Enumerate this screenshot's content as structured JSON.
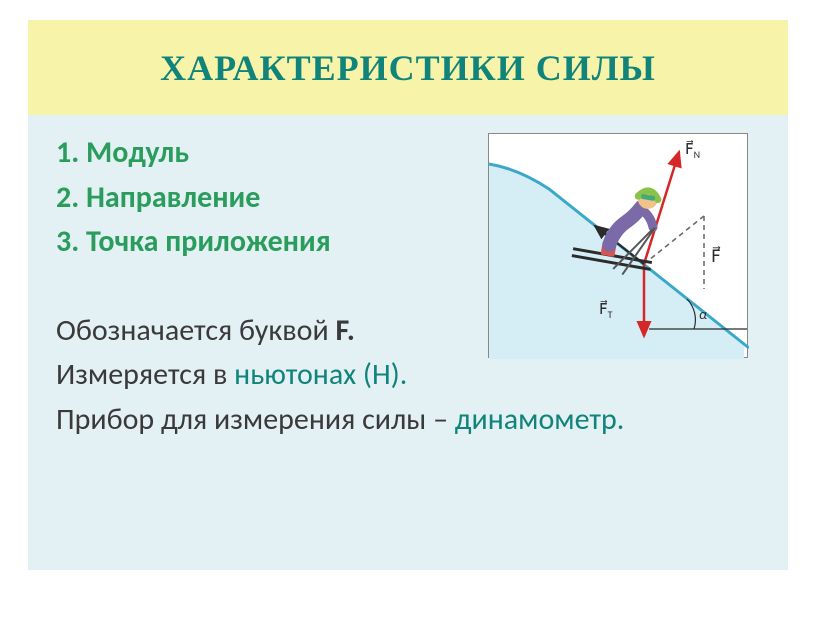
{
  "title": {
    "text": "ХАРАКТЕРИСТИКИ    СИЛЫ",
    "fontsize": 36,
    "color": "#10847a",
    "background": "#f7f3a9"
  },
  "body": {
    "background": "#e3f0f4",
    "text_color_accent": "#2a9d5c",
    "text_color_main": "#3a3a3a",
    "text_color_highlight": "#10847a",
    "fontsize": 30,
    "items": [
      {
        "num": "1. ",
        "text": "Модуль"
      },
      {
        "num": "2. ",
        "text": "Направление"
      },
      {
        "num": "3. ",
        "text": "Точка приложения"
      }
    ],
    "para1_a": "Обозначается буквой ",
    "para1_b": "F.",
    "para2_a": "Измеряется в ",
    "para2_b": "ньютонах (Н).",
    "para3_a": "Прибор для измерения силы – ",
    "para3_b": "динамометр."
  },
  "diagram": {
    "slope_fill": "#d5eef6",
    "slope_stroke": "#3aa9c9",
    "vector_red": "#d62728",
    "vector_dark": "#2b2b2b",
    "dash": "#666666",
    "angle_label": "α",
    "fn_label": "F⃗",
    "fn_sub": "N",
    "ft_label": "F⃗",
    "ft_sub": "T",
    "f_label": "F⃗",
    "skier": {
      "suit": "#7a6aa8",
      "hat": "#8bc34a",
      "boots": "#d9534f",
      "skin": "#f2c28b",
      "pole": "#555555"
    }
  }
}
